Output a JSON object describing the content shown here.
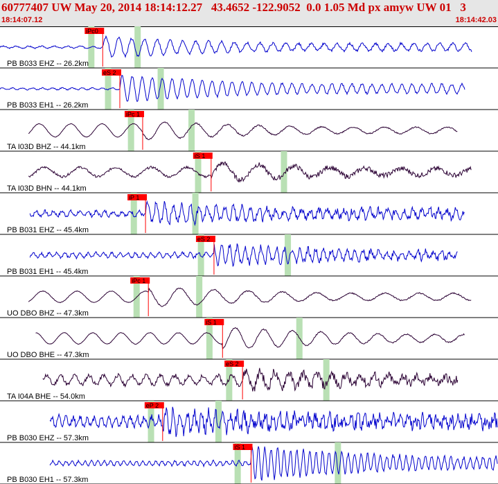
{
  "header": {
    "title": "60777407 UW May 20, 2014 18:14:12.27   43.4652 -122.9052  0.0 1.05 Md px amyw UW 01   3",
    "start_time": "18:14:07.12",
    "end_time": "18:14:42.03"
  },
  "colors": {
    "blue_trace": "#0000cc",
    "dark_trace": "#2a0033",
    "pick_box": "#ff0000",
    "window": "#b9e0b4",
    "header_text": "#cc0000"
  },
  "traces": [
    {
      "label": "PB B033 EHZ -- 26.2km",
      "color": "blue",
      "pick": "iPc0",
      "start_sec": 0,
      "noise": 0.06,
      "phase_sec": 7.2,
      "amp_pre": 0.05,
      "amp_post": 0.55,
      "period": 0.9
    },
    {
      "label": "PB B033 EH1 -- 26.2km",
      "color": "blue",
      "pick": "eS 2",
      "start_sec": 0,
      "noise": 0.05,
      "phase_sec": 8.4,
      "amp_pre": 0.05,
      "amp_post": 0.7,
      "period": 0.7
    },
    {
      "label": "TA I03D BHZ -- 44.1km",
      "color": "dark",
      "pick": "iPc 1",
      "start_sec": 2.0,
      "noise": 0.03,
      "phase_sec": 10.0,
      "amp_pre": 0.35,
      "amp_post": 0.5,
      "period": 2.2
    },
    {
      "label": "TA I03D BHN -- 44.1km",
      "color": "dark",
      "pick": "iS 1",
      "start_sec": 2.0,
      "noise": 0.12,
      "phase_sec": 14.8,
      "amp_pre": 0.25,
      "amp_post": 0.5,
      "period": 2.5
    },
    {
      "label": "PB B031 EHZ -- 45.4km",
      "color": "blue",
      "pick": "iP 1",
      "start_sec": 2.1,
      "noise": 0.18,
      "phase_sec": 10.2,
      "amp_pre": 0.12,
      "amp_post": 0.55,
      "period": 0.6
    },
    {
      "label": "PB B031 EH1 -- 45.4km",
      "color": "blue",
      "pick": "eS 2",
      "start_sec": 2.1,
      "noise": 0.15,
      "phase_sec": 15.0,
      "amp_pre": 0.12,
      "amp_post": 0.55,
      "period": 0.55
    },
    {
      "label": "UO DBO BHZ -- 47.3km",
      "color": "dark",
      "pick": "iPc 1",
      "start_sec": 2.0,
      "noise": 0.03,
      "phase_sec": 10.4,
      "amp_pre": 0.3,
      "amp_post": 0.55,
      "period": 2.4
    },
    {
      "label": "UO DBO BHE -- 47.3km",
      "color": "dark",
      "pick": "iS 1",
      "start_sec": 2.5,
      "noise": 0.03,
      "phase_sec": 15.6,
      "amp_pre": 0.3,
      "amp_post": 0.6,
      "period": 2.0
    },
    {
      "label": "TA I04A BHE -- 54.0km",
      "color": "dark",
      "pick": "eS 2",
      "start_sec": 3.0,
      "noise": 0.22,
      "phase_sec": 17.0,
      "amp_pre": 0.25,
      "amp_post": 0.5,
      "period": 1.0
    },
    {
      "label": "PB B030 EHZ -- 57.3km",
      "color": "blue",
      "pick": "eP 2",
      "start_sec": 3.5,
      "noise": 0.3,
      "phase_sec": 11.4,
      "amp_pre": 0.25,
      "amp_post": 0.6,
      "period": 0.5
    },
    {
      "label": "PB B030 EH1 -- 57.3km",
      "color": "blue",
      "pick": "iS 1",
      "start_sec": 3.5,
      "noise": 0.1,
      "phase_sec": 17.6,
      "amp_pre": 0.12,
      "amp_post": 0.9,
      "period": 0.45
    }
  ]
}
